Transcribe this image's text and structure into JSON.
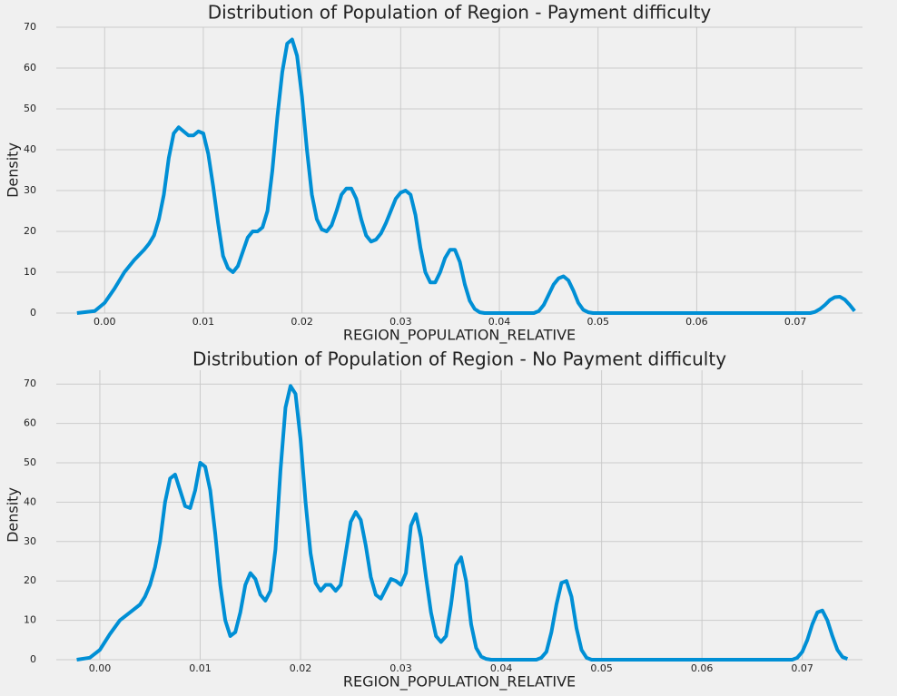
{
  "chart_data": [
    {
      "type": "line",
      "title": "Distribution of Population of Region - Payment difficulty",
      "xlabel": "REGION_POPULATION_RELATIVE",
      "ylabel": "Density",
      "color": "#008fd5",
      "grid": true,
      "xlim": [
        -0.0049,
        0.0768
      ],
      "ylim": [
        0,
        70
      ],
      "xticks": [
        {
          "value": 0,
          "label": "0.00"
        },
        0.01,
        0.02,
        0.03,
        0.04,
        0.05,
        0.06,
        0.07
      ],
      "yticks": [
        0,
        10,
        20,
        30,
        40,
        50,
        60,
        70
      ],
      "x": [
        -0.0028,
        -0.001,
        0,
        0.001,
        0.002,
        0.003,
        0.004,
        0.0045,
        0.005,
        0.0055,
        0.006,
        0.0065,
        0.007,
        0.0075,
        0.008,
        0.0085,
        0.009,
        0.0095,
        0.01,
        0.0105,
        0.011,
        0.0115,
        0.012,
        0.0125,
        0.013,
        0.0135,
        0.014,
        0.0145,
        0.015,
        0.0155,
        0.016,
        0.0165,
        0.017,
        0.0175,
        0.018,
        0.0185,
        0.019,
        0.0195,
        0.02,
        0.0205,
        0.021,
        0.0215,
        0.022,
        0.0225,
        0.023,
        0.0235,
        0.024,
        0.0245,
        0.025,
        0.0255,
        0.026,
        0.0265,
        0.027,
        0.0275,
        0.028,
        0.0285,
        0.029,
        0.0295,
        0.03,
        0.0305,
        0.031,
        0.0315,
        0.032,
        0.0325,
        0.033,
        0.0335,
        0.034,
        0.0345,
        0.035,
        0.0355,
        0.036,
        0.0365,
        0.037,
        0.0375,
        0.038,
        0.0385,
        0.0435,
        0.044,
        0.0445,
        0.045,
        0.0455,
        0.046,
        0.0465,
        0.047,
        0.0475,
        0.048,
        0.0485,
        0.049,
        0.0495,
        0.0715,
        0.072,
        0.0725,
        0.073,
        0.0735,
        0.074,
        0.0745,
        0.075,
        0.0755,
        0.076
      ],
      "values": [
        0,
        0.5,
        2.5,
        6,
        10,
        13,
        15.5,
        17,
        19,
        23,
        29,
        38,
        44,
        45.5,
        44.5,
        43.5,
        43.5,
        44.5,
        44,
        39,
        31,
        22,
        14,
        11,
        10,
        11.5,
        15,
        18.5,
        20,
        20,
        21,
        25,
        35,
        48,
        59,
        66,
        67,
        63,
        53,
        40,
        29,
        23,
        20.5,
        20,
        21.5,
        25,
        29,
        30.5,
        30.5,
        28,
        23,
        19,
        17.5,
        18,
        19.5,
        22,
        25,
        28,
        29.5,
        30,
        29,
        24,
        16,
        10,
        7.5,
        7.5,
        10,
        13.5,
        15.5,
        15.5,
        12.5,
        7,
        3,
        1,
        0.2,
        0,
        0,
        0.5,
        2,
        4.5,
        7,
        8.5,
        9,
        8,
        5.5,
        2.5,
        0.8,
        0.2,
        0,
        0,
        0.3,
        1,
        2,
        3.2,
        3.9,
        4,
        3.3,
        2,
        0.5
      ]
    },
    {
      "type": "line",
      "title": "Distribution of Population of Region - No Payment difficulty",
      "xlabel": "REGION_POPULATION_RELATIVE",
      "ylabel": "Density",
      "color": "#008fd5",
      "grid": true,
      "xlim": [
        -0.00434,
        0.076
      ],
      "ylim": [
        0,
        73.5
      ],
      "xticks": [
        {
          "value": 0,
          "label": "0.00"
        },
        0.01,
        0.02,
        0.03,
        0.04,
        0.05,
        0.06,
        0.07
      ],
      "yticks": [
        0,
        10,
        20,
        30,
        40,
        50,
        60,
        70
      ],
      "x": [
        -0.0023,
        -0.001,
        0,
        0.001,
        0.002,
        0.003,
        0.004,
        0.0045,
        0.005,
        0.0055,
        0.006,
        0.0065,
        0.007,
        0.0075,
        0.008,
        0.0085,
        0.009,
        0.0095,
        0.01,
        0.0105,
        0.011,
        0.0115,
        0.012,
        0.0125,
        0.013,
        0.0135,
        0.014,
        0.0145,
        0.015,
        0.0155,
        0.016,
        0.0165,
        0.017,
        0.0175,
        0.018,
        0.0185,
        0.019,
        0.0195,
        0.02,
        0.0205,
        0.021,
        0.0215,
        0.022,
        0.0225,
        0.023,
        0.0235,
        0.024,
        0.0245,
        0.025,
        0.0255,
        0.026,
        0.0265,
        0.027,
        0.0275,
        0.028,
        0.0285,
        0.029,
        0.0295,
        0.03,
        0.0305,
        0.031,
        0.0315,
        0.032,
        0.0325,
        0.033,
        0.0335,
        0.034,
        0.0345,
        0.035,
        0.0355,
        0.036,
        0.0365,
        0.037,
        0.0375,
        0.038,
        0.0385,
        0.039,
        0.0435,
        0.044,
        0.0445,
        0.045,
        0.0455,
        0.046,
        0.0465,
        0.047,
        0.0475,
        0.048,
        0.0485,
        0.049,
        0.069,
        0.0695,
        0.07,
        0.0705,
        0.071,
        0.0715,
        0.072,
        0.0725,
        0.073,
        0.0735,
        0.074,
        0.0745
      ],
      "values": [
        0,
        0.5,
        2.5,
        6.5,
        10,
        12,
        14,
        16,
        19,
        23.5,
        30,
        40,
        46,
        47,
        43,
        39,
        38.5,
        43,
        50,
        49,
        43,
        32,
        19,
        10,
        6,
        7,
        12,
        19,
        22,
        20.5,
        16.5,
        15,
        17.5,
        28,
        48,
        64,
        69.5,
        67.5,
        56,
        40,
        27,
        19.5,
        17.5,
        19,
        19,
        17.5,
        19,
        27,
        35,
        37.5,
        35.5,
        29,
        21,
        16.5,
        15.5,
        18,
        20.5,
        20,
        19,
        22,
        34,
        37,
        31,
        21,
        12,
        6,
        4.5,
        6,
        14,
        24,
        26,
        20,
        9,
        3,
        0.8,
        0.2,
        0,
        0,
        0.5,
        2,
        7,
        14,
        19.5,
        20,
        16,
        8,
        2.5,
        0.5,
        0,
        0,
        0.5,
        2,
        5,
        9,
        12,
        12.5,
        10,
        6,
        2.5,
        0.7,
        0.2
      ]
    }
  ]
}
